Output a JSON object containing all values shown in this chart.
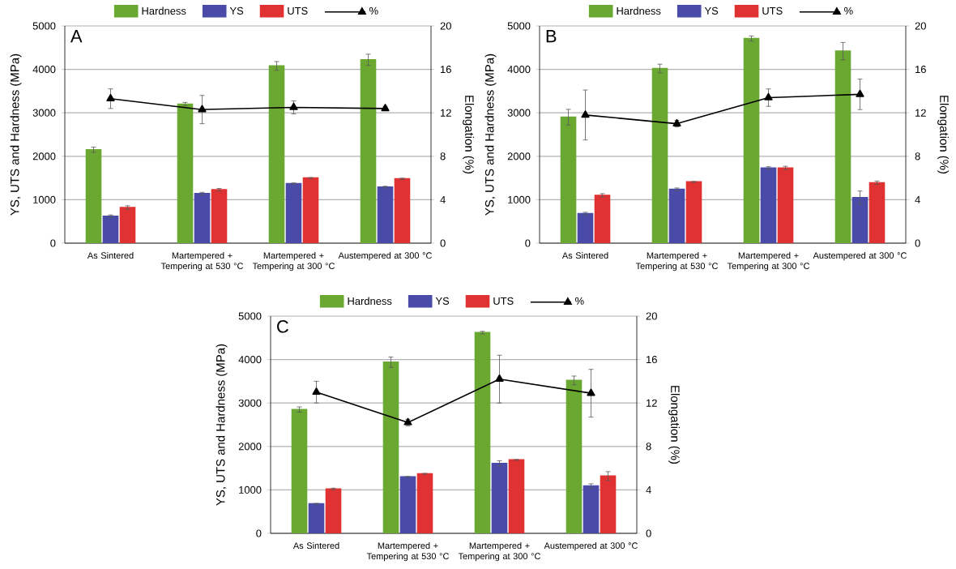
{
  "chart_data": [
    {
      "type": "bar",
      "categories": [
        "As Sintered",
        "Martempered + Tempering at 530 °C",
        "Martempered + Tempering at 300 °C",
        "Austempered at 300 °C"
      ],
      "ylabel": "YS, UTS and Hardness (MPa)",
      "y2label": "Elongation (%)",
      "ylim": [
        0,
        5000
      ],
      "yticks": [
        0,
        1000,
        2000,
        3000,
        4000,
        5000
      ],
      "y2lim": [
        0,
        20
      ],
      "y2ticks": [
        0,
        4,
        8,
        12,
        16,
        20
      ],
      "grid": "y",
      "legend": "top",
      "annotations": [
        "A"
      ],
      "series": [
        {
          "name": "Hardness",
          "color": "#6aa832",
          "values": [
            2150,
            3200,
            4080,
            4220
          ],
          "errors": [
            60,
            40,
            100,
            130
          ]
        },
        {
          "name": "YS",
          "color": "#4a4aa8",
          "values": [
            620,
            1140,
            1370,
            1290
          ],
          "errors": [
            30,
            30,
            15,
            20
          ]
        },
        {
          "name": "UTS",
          "color": "#e03232",
          "values": [
            820,
            1230,
            1500,
            1480
          ],
          "errors": [
            40,
            30,
            10,
            15
          ]
        },
        {
          "name": "%",
          "type": "line",
          "axis": "y2",
          "marker": "triangle",
          "color": "#000000",
          "values": [
            13.3,
            12.3,
            12.5,
            12.4
          ],
          "errors": [
            0.9,
            1.3,
            0.6,
            0.2
          ]
        }
      ]
    },
    {
      "type": "bar",
      "categories": [
        "As Sintered",
        "Martempered + Tempering at 530 °C",
        "Martempered + Tempering at 300 °C",
        "Austempered at 300 °C"
      ],
      "ylabel": "YS, UTS and Hardness (MPa)",
      "y2label": "Elongation (%)",
      "ylim": [
        0,
        5000
      ],
      "yticks": [
        0,
        1000,
        2000,
        3000,
        4000,
        5000
      ],
      "y2lim": [
        0,
        20
      ],
      "y2ticks": [
        0,
        4,
        8,
        12,
        16,
        20
      ],
      "grid": "y",
      "legend": "top",
      "annotations": [
        "B"
      ],
      "series": [
        {
          "name": "Hardness",
          "color": "#6aa832",
          "values": [
            2900,
            4020,
            4710,
            4420
          ],
          "errors": [
            180,
            100,
            60,
            200
          ]
        },
        {
          "name": "YS",
          "color": "#4a4aa8",
          "values": [
            680,
            1240,
            1730,
            1050
          ],
          "errors": [
            30,
            30,
            30,
            150
          ]
        },
        {
          "name": "UTS",
          "color": "#e03232",
          "values": [
            1100,
            1410,
            1730,
            1390
          ],
          "errors": [
            40,
            10,
            40,
            40
          ]
        },
        {
          "name": "%",
          "type": "line",
          "axis": "y2",
          "marker": "triangle",
          "color": "#000000",
          "values": [
            11.8,
            11.0,
            13.4,
            13.7
          ],
          "errors": [
            2.3,
            0.3,
            0.8,
            1.4
          ]
        }
      ]
    },
    {
      "type": "bar",
      "categories": [
        "As Sintered",
        "Martempered + Tempering at 530 °C",
        "Martempered + Tempering at 300 °C",
        "Austempered at 300 °C"
      ],
      "ylabel": "YS, UTS and Hardness (MPa)",
      "y2label": "Elongation (%)",
      "ylim": [
        0,
        5000
      ],
      "yticks": [
        0,
        1000,
        2000,
        3000,
        4000,
        5000
      ],
      "y2lim": [
        0,
        20
      ],
      "y2ticks": [
        0,
        4,
        8,
        12,
        16,
        20
      ],
      "grid": "y",
      "legend": "top",
      "annotations": [
        "C"
      ],
      "series": [
        {
          "name": "Hardness",
          "color": "#6aa832",
          "values": [
            2850,
            3940,
            4620,
            3520
          ],
          "errors": [
            60,
            120,
            30,
            100
          ]
        },
        {
          "name": "YS",
          "color": "#4a4aa8",
          "values": [
            680,
            1300,
            1610,
            1090
          ],
          "errors": [
            10,
            10,
            60,
            50
          ]
        },
        {
          "name": "UTS",
          "color": "#e03232",
          "values": [
            1020,
            1370,
            1690,
            1320
          ],
          "errors": [
            20,
            10,
            10,
            100
          ]
        },
        {
          "name": "%",
          "type": "line",
          "axis": "y2",
          "marker": "triangle",
          "color": "#000000",
          "values": [
            13.0,
            10.2,
            14.2,
            12.9
          ],
          "errors": [
            1.0,
            0.3,
            2.2,
            2.2
          ]
        }
      ]
    }
  ]
}
